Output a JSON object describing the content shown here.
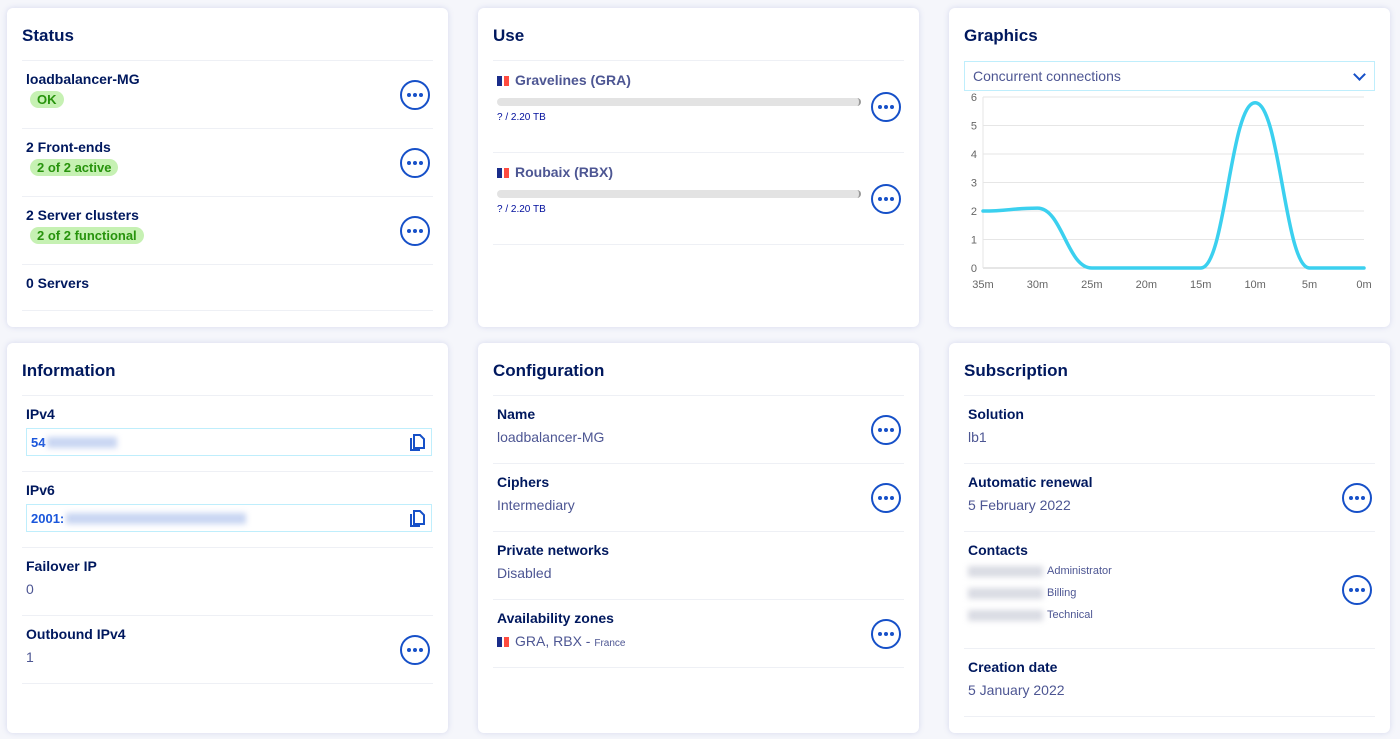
{
  "status": {
    "title": "Status",
    "items": [
      {
        "label": "loadbalancer-MG",
        "badge": "OK"
      },
      {
        "label": "2 Front-ends",
        "badge": "2 of 2 active"
      },
      {
        "label": "2 Server clusters",
        "badge": "2 of 2 functional"
      },
      {
        "label": "0 Servers"
      }
    ]
  },
  "use": {
    "title": "Use",
    "items": [
      {
        "label": "Gravelines (GRA)",
        "usage": "? / 2.20 TB"
      },
      {
        "label": "Roubaix (RBX)",
        "usage": "? / 2.20 TB"
      }
    ]
  },
  "graphics": {
    "title": "Graphics",
    "select": "Concurrent connections"
  },
  "chart_data": {
    "type": "line",
    "x": [
      "35m",
      "30m",
      "25m",
      "20m",
      "15m",
      "10m",
      "5m",
      "0m"
    ],
    "series": [
      {
        "values": [
          2,
          2.1,
          0,
          0,
          0,
          5.8,
          0,
          0
        ]
      }
    ],
    "ylim": [
      0,
      6
    ],
    "yticks": [
      0,
      1,
      2,
      3,
      4,
      5,
      6
    ],
    "grid": true,
    "color": "#3bd0ef"
  },
  "information": {
    "title": "Information",
    "ipv4_label": "IPv4",
    "ipv4_prefix": "54",
    "ipv6_label": "IPv6",
    "ipv6_prefix": "2001:",
    "failover_label": "Failover IP",
    "failover_value": "0",
    "outbound_label": "Outbound IPv4",
    "outbound_value": "1"
  },
  "configuration": {
    "title": "Configuration",
    "items": [
      {
        "label": "Name",
        "value": "loadbalancer-MG"
      },
      {
        "label": "Ciphers",
        "value": "Intermediary"
      },
      {
        "label": "Private networks",
        "value": "Disabled"
      },
      {
        "label": "Availability zones",
        "value": "GRA, RBX",
        "country": "France"
      }
    ]
  },
  "subscription": {
    "title": "Subscription",
    "solution_label": "Solution",
    "solution": "lb1",
    "renewal_label": "Automatic renewal",
    "renewal": "5 February 2022",
    "contacts_label": "Contacts",
    "contacts": [
      "Administrator",
      "Billing",
      "Technical"
    ],
    "creation_label": "Creation date",
    "creation": "5 January 2022"
  }
}
